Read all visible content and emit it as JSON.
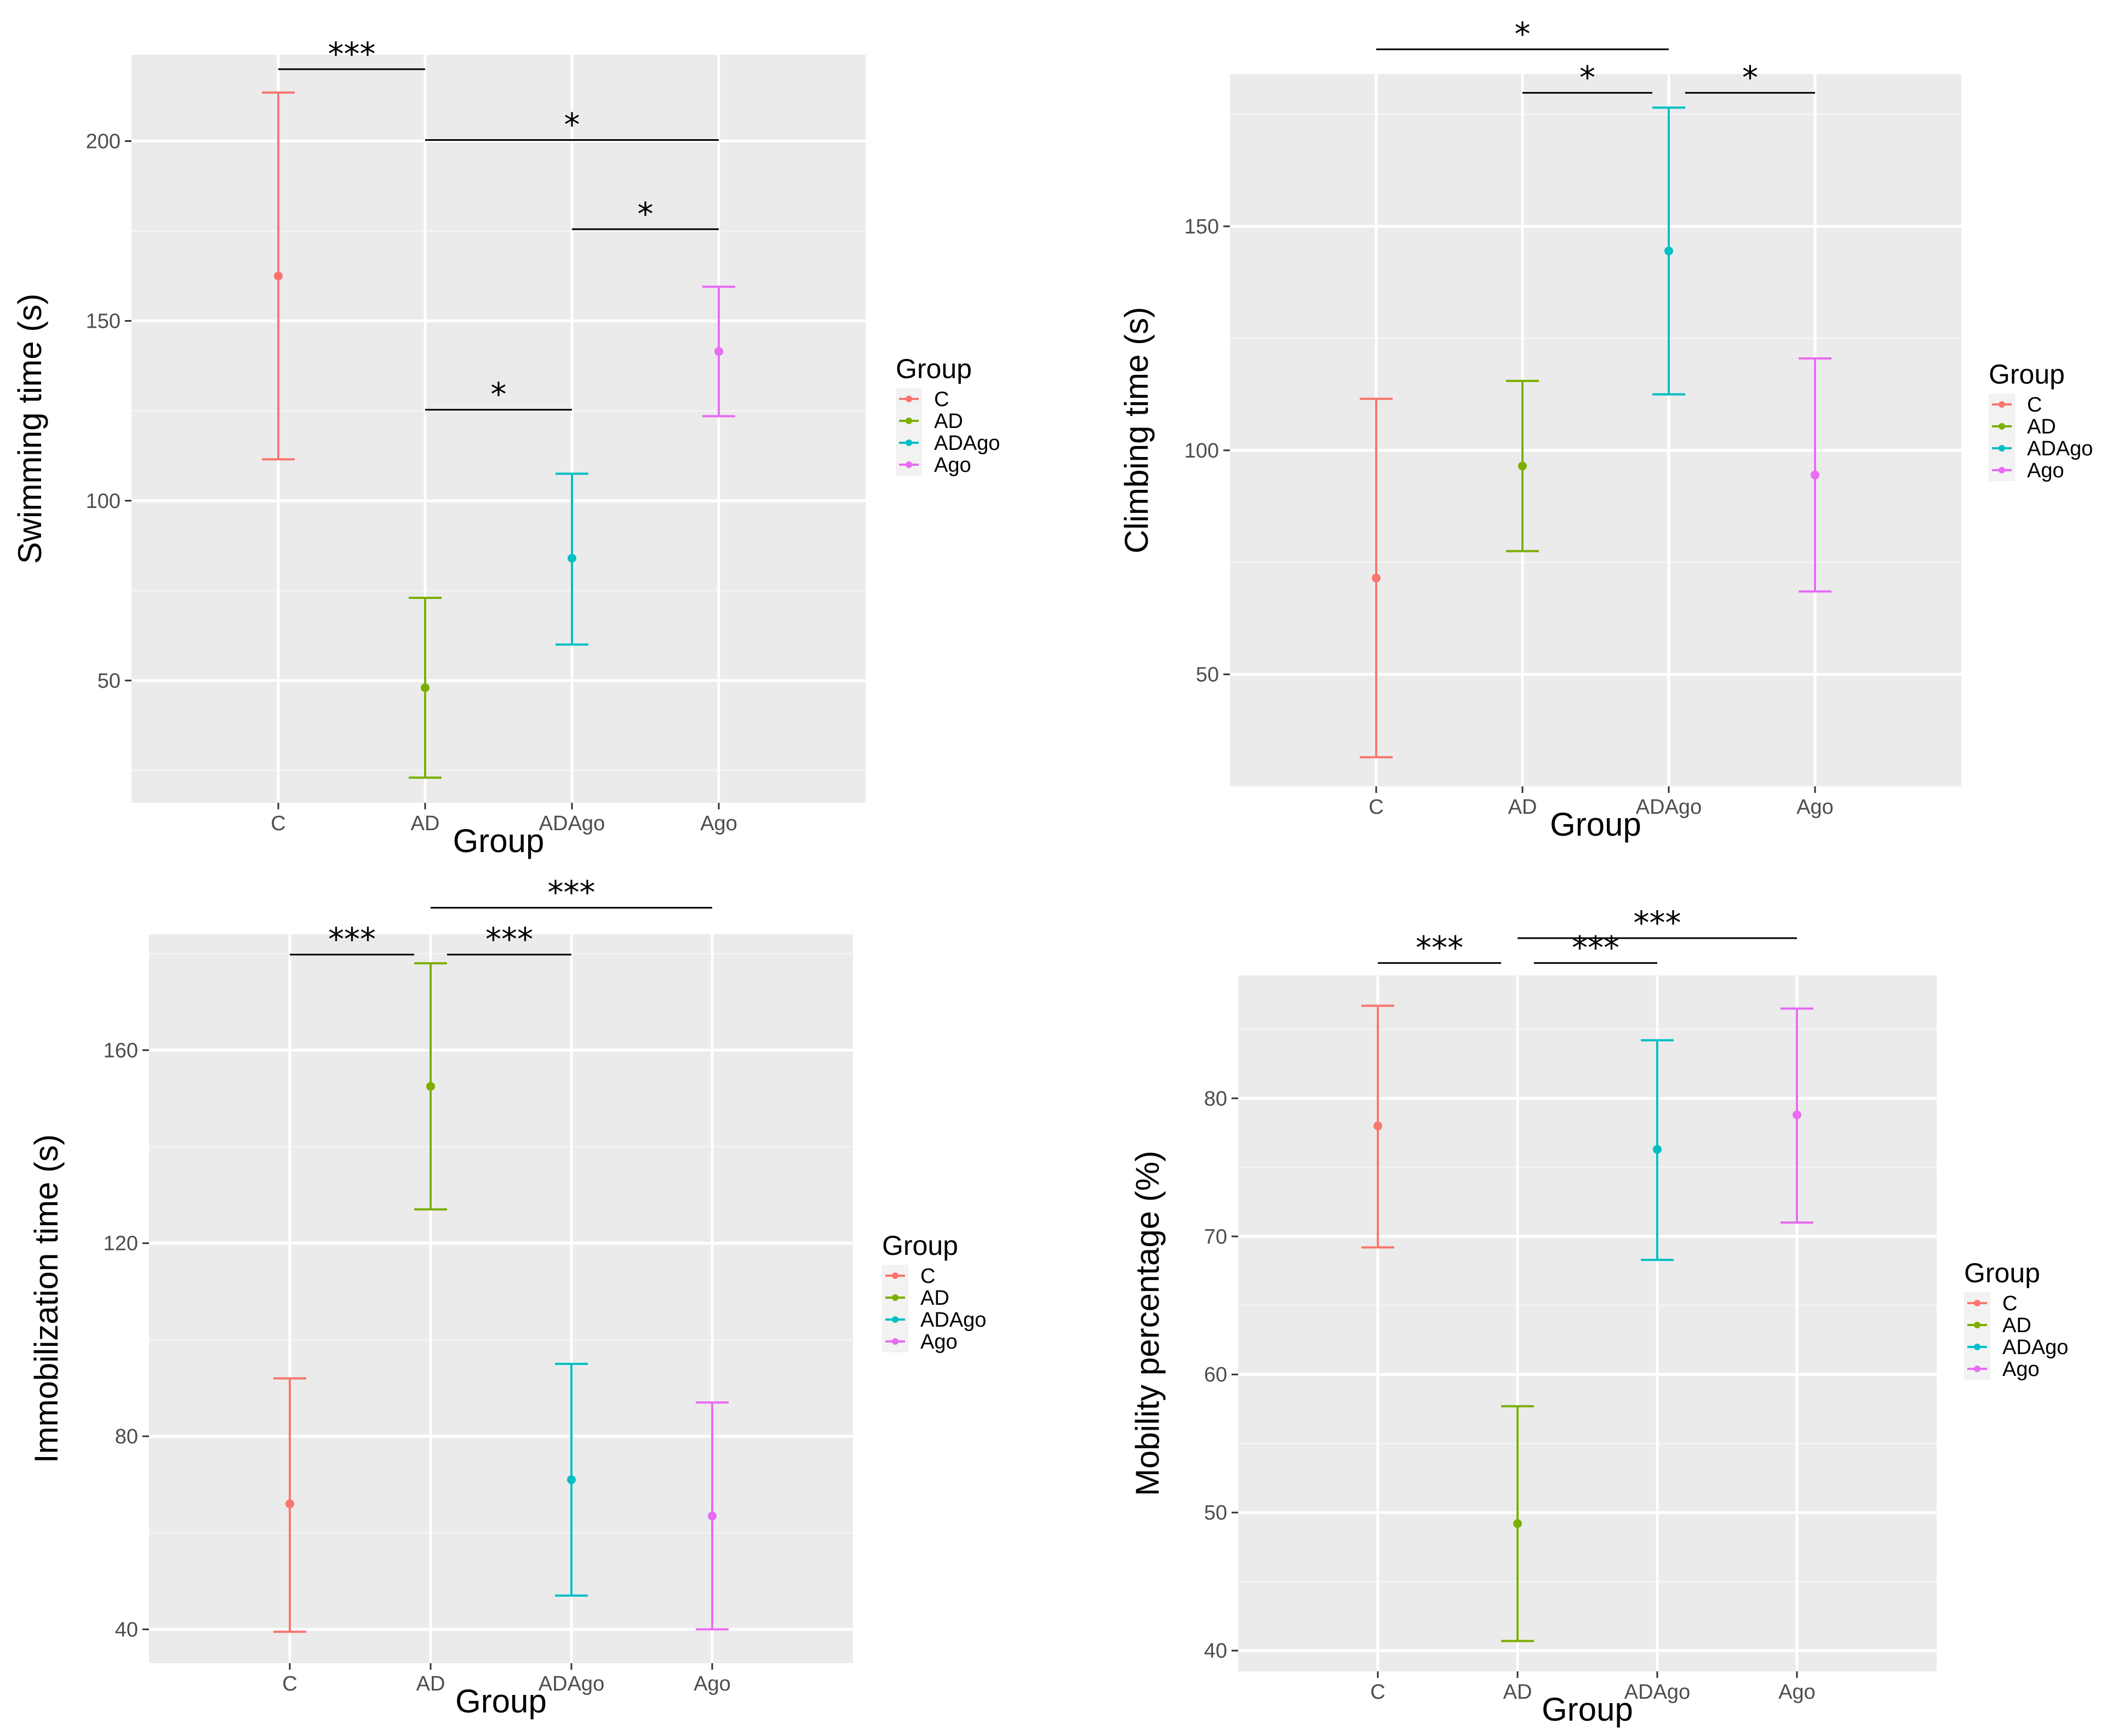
{
  "colors": {
    "C": "#F8766D",
    "AD": "#7CAE00",
    "ADAgo": "#00BFC4",
    "Ago": "#E76BF3"
  },
  "chart_data": [
    {
      "type": "errorbar",
      "id": "swimming",
      "title": "",
      "xlabel": "Group",
      "ylabel": "Swimming time (s)",
      "categories": [
        "C",
        "AD",
        "ADAgo",
        "Ago"
      ],
      "means": [
        162.5,
        48,
        84,
        141.5
      ],
      "lower": [
        111.5,
        23,
        60,
        123.5
      ],
      "upper": [
        213.5,
        73,
        107.5,
        159.5
      ],
      "ylim": [
        16,
        224
      ],
      "yticks": [
        50,
        100,
        150,
        200
      ],
      "legend": {
        "title": "Group",
        "entries": [
          "C",
          "AD",
          "ADAgo",
          "Ago"
        ]
      },
      "significance": [
        {
          "from": 0,
          "to": 1,
          "y": 220,
          "label": "***"
        },
        {
          "from": 1,
          "to": 3,
          "y": 200.3,
          "label": "*"
        },
        {
          "from": 2,
          "to": 3,
          "y": 175.5,
          "label": "*"
        },
        {
          "from": 1,
          "to": 2,
          "y": 125.3,
          "label": "*"
        }
      ]
    },
    {
      "type": "errorbar",
      "id": "climbing",
      "title": "",
      "xlabel": "Group",
      "ylabel": "Climbing time (s)",
      "categories": [
        "C",
        "AD",
        "ADAgo",
        "Ago"
      ],
      "means": [
        71.5,
        96.5,
        144.5,
        94.5
      ],
      "lower": [
        31.5,
        77.5,
        112.5,
        68.5
      ],
      "upper": [
        111.5,
        115.5,
        176.5,
        120.5
      ],
      "ylim": [
        25,
        184
      ],
      "yticks": [
        50,
        100,
        150
      ],
      "legend": {
        "title": "Group",
        "entries": [
          "C",
          "AD",
          "ADAgo",
          "Ago"
        ]
      },
      "significance": [
        {
          "from": 0,
          "to": 2,
          "y": 189.5,
          "label": "*"
        },
        {
          "from": 1,
          "to": 2,
          "y": 179.8,
          "label": "*",
          "trimEnd": true
        },
        {
          "from": 2,
          "to": 3,
          "y": 179.8,
          "label": "*",
          "trimStart": true
        }
      ]
    },
    {
      "type": "errorbar",
      "id": "immobilization",
      "title": "",
      "xlabel": "Group",
      "ylabel": "Immobilization time (s)",
      "categories": [
        "C",
        "AD",
        "ADAgo",
        "Ago"
      ],
      "means": [
        66,
        152.5,
        71,
        63.5
      ],
      "lower": [
        39.5,
        127,
        47,
        40
      ],
      "upper": [
        92,
        178,
        95,
        87
      ],
      "ylim": [
        33,
        184
      ],
      "yticks": [
        40,
        80,
        120,
        160
      ],
      "legend": {
        "title": "Group",
        "entries": [
          "C",
          "AD",
          "ADAgo",
          "Ago"
        ]
      },
      "significance": [
        {
          "from": 1,
          "to": 3,
          "y": 189.5,
          "label": "***"
        },
        {
          "from": 0,
          "to": 1,
          "y": 179.8,
          "label": "***",
          "trimEnd": true
        },
        {
          "from": 1,
          "to": 2,
          "y": 179.8,
          "label": "***",
          "trimStart": true
        }
      ]
    },
    {
      "type": "errorbar",
      "id": "mobility",
      "title": "",
      "xlabel": "Group",
      "ylabel": "Mobility percentage (%)",
      "categories": [
        "C",
        "AD",
        "ADAgo",
        "Ago"
      ],
      "means": [
        78,
        49.2,
        76.3,
        78.8
      ],
      "lower": [
        69.2,
        40.7,
        68.3,
        71
      ],
      "upper": [
        86.7,
        57.7,
        84.2,
        86.5
      ],
      "ylim": [
        38.5,
        88.9
      ],
      "yticks": [
        40,
        50,
        60,
        70,
        80
      ],
      "legend": {
        "title": "Group",
        "entries": [
          "C",
          "AD",
          "ADAgo",
          "Ago"
        ]
      },
      "significance": [
        {
          "from": 1,
          "to": 3,
          "y": 91.6,
          "label": "***"
        },
        {
          "from": 0,
          "to": 1,
          "y": 89.8,
          "label": "***",
          "trimEnd": true
        },
        {
          "from": 1,
          "to": 2,
          "y": 89.8,
          "label": "***",
          "trimStart": true
        }
      ]
    }
  ]
}
